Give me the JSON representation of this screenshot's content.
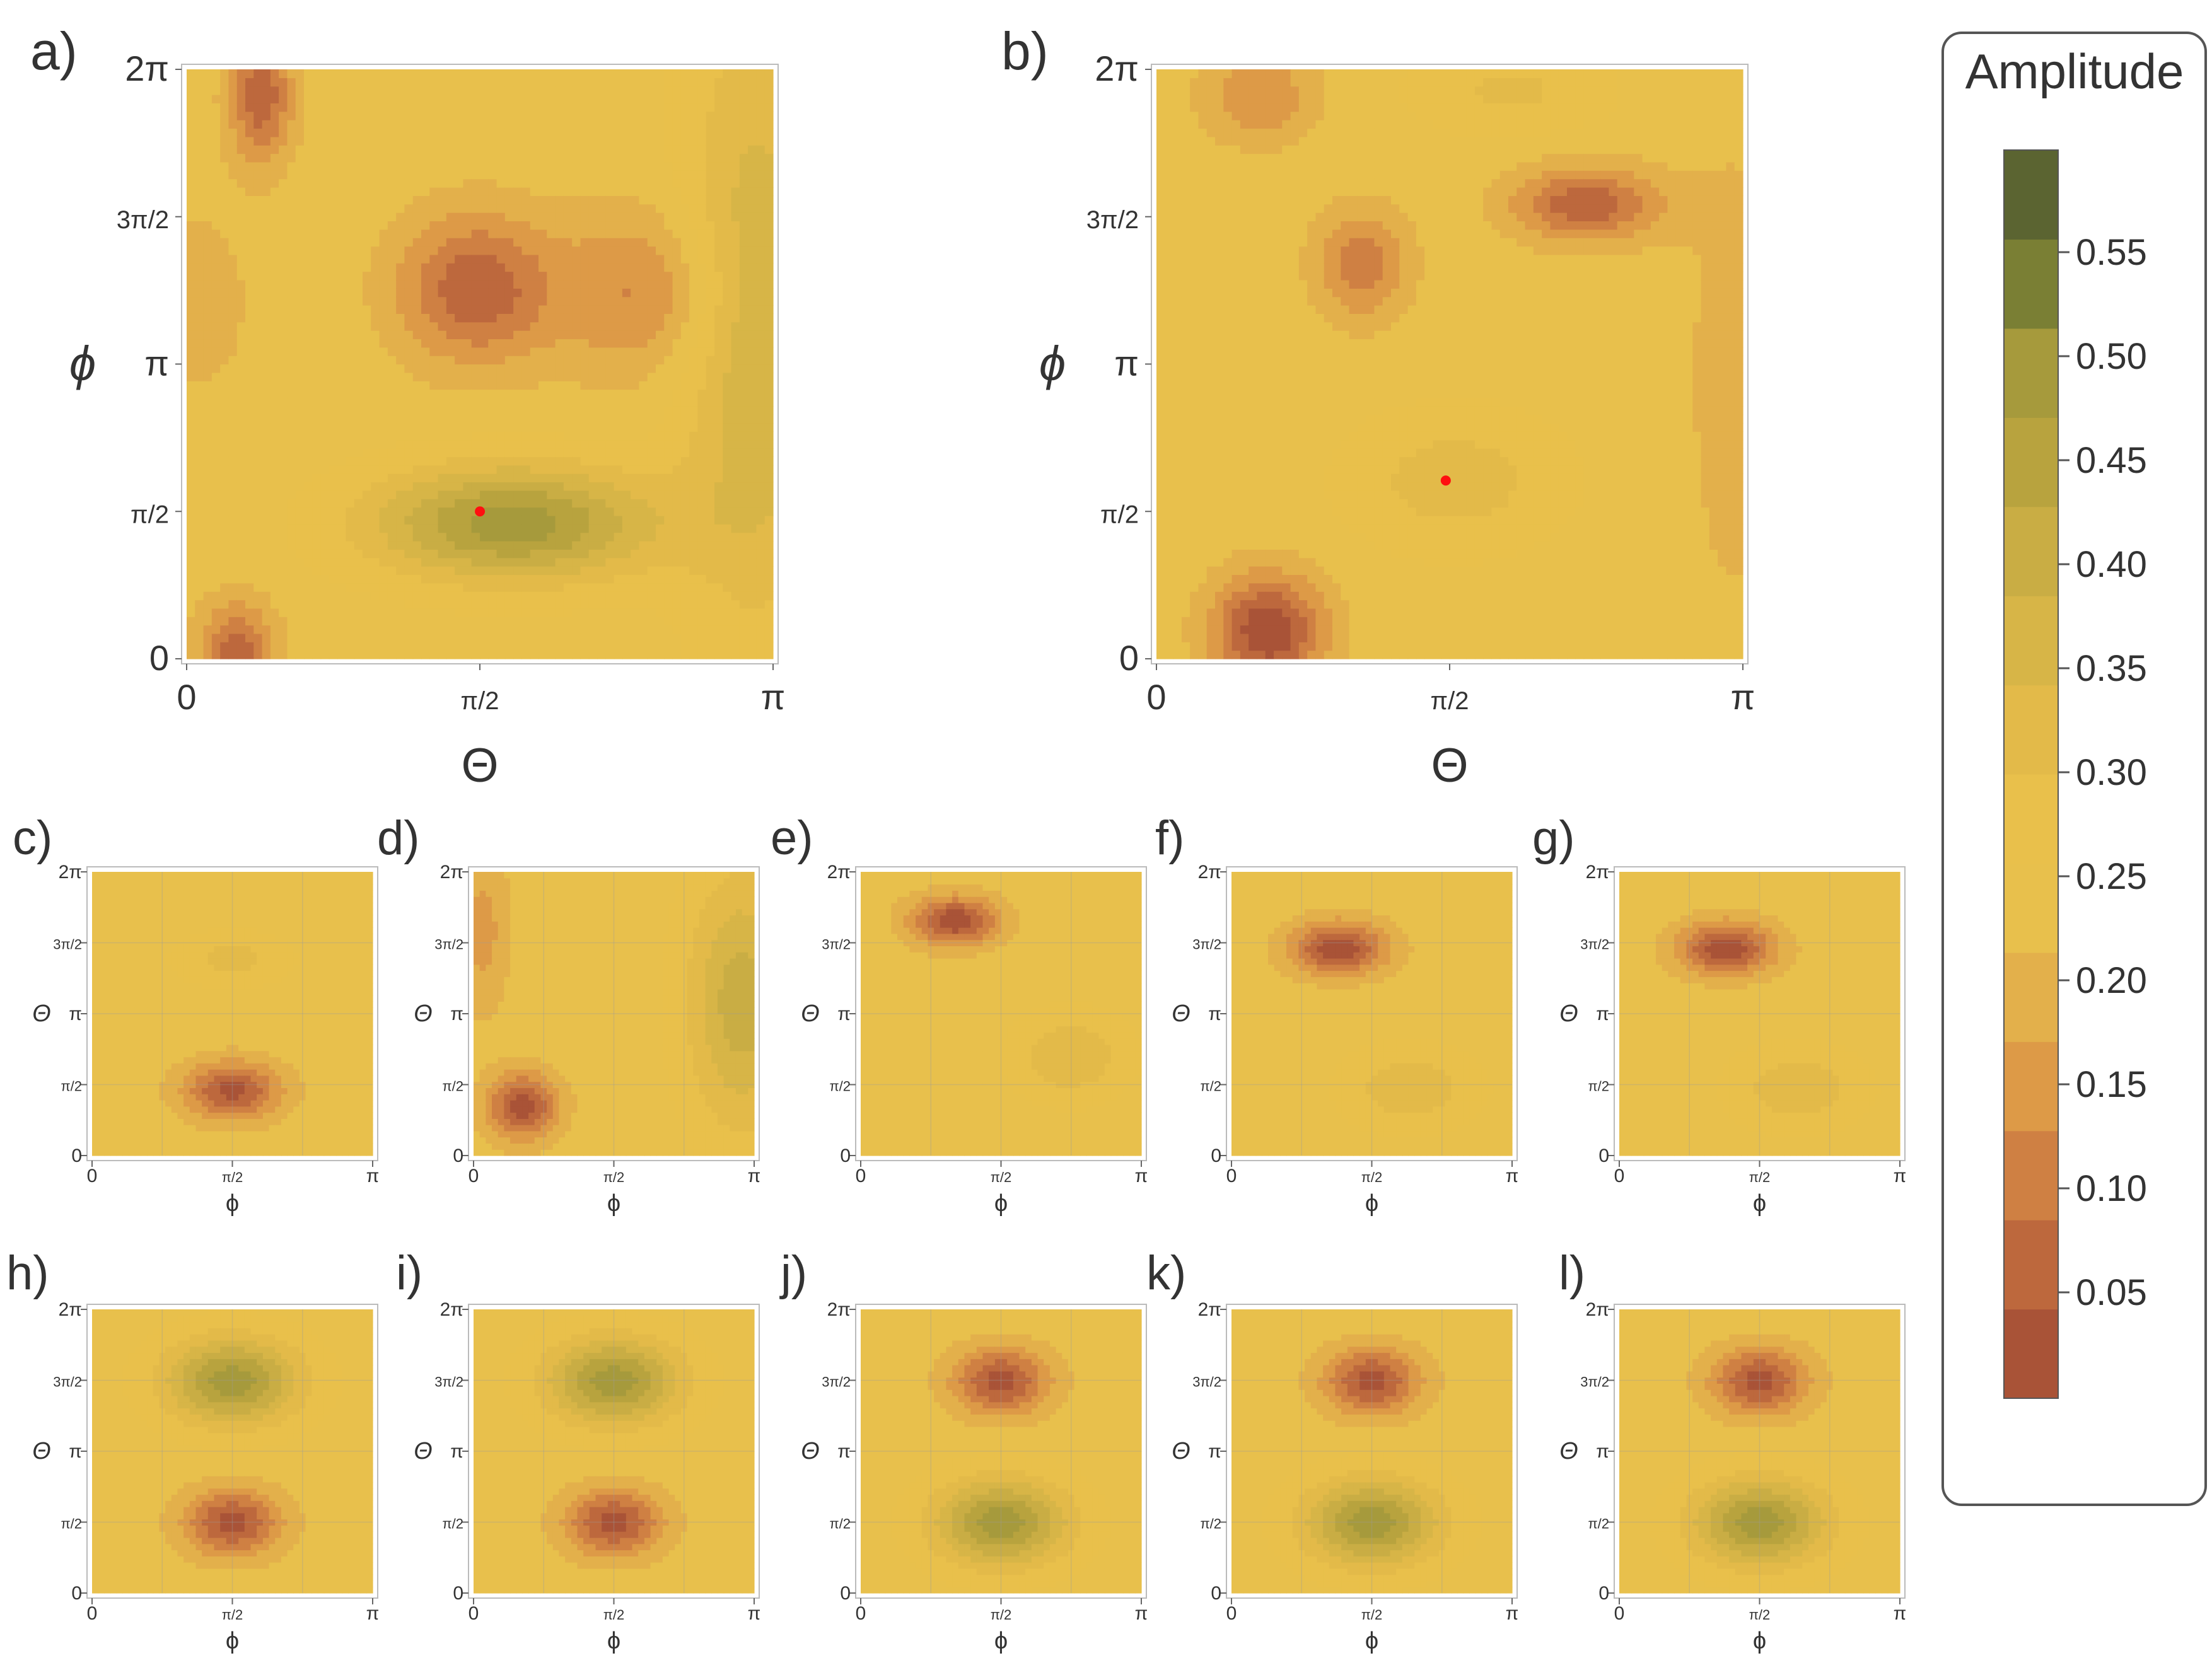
{
  "colorbar": {
    "title": "Amplitude",
    "ticks": [
      "0.55",
      "0.50",
      "0.45",
      "0.40",
      "0.35",
      "0.30",
      "0.25",
      "0.20",
      "0.15",
      "0.10",
      "0.05"
    ],
    "levels": [
      0.05,
      0.1,
      0.15,
      0.2,
      0.25,
      0.3,
      0.35,
      0.4,
      0.45,
      0.5,
      0.55
    ],
    "colors": [
      "#a95337",
      "#bd683d",
      "#cf8043",
      "#dd9a47",
      "#e3b04b",
      "#e8c04c",
      "#e9c04b",
      "#e3ba49",
      "#d7b547",
      "#c9ad44",
      "#b8a33e",
      "#a69a3c",
      "#7a7f34",
      "#5b6431"
    ]
  },
  "chart_data": [
    {
      "id": "a",
      "label": "a)",
      "type": "heatmap",
      "xlabel": "Θ",
      "ylabel": "ϕ",
      "xticks": [
        "0",
        "π/2",
        "π"
      ],
      "yticks": [
        "0",
        "π/2",
        "π",
        "3π/2",
        "2π"
      ],
      "xlim": [
        0,
        3.1416
      ],
      "ylim": [
        0,
        6.2832
      ],
      "marker": {
        "x": 1.571,
        "y": 1.571
      },
      "features": [
        {
          "x": 0.27,
          "y": 0.05,
          "amp": -0.22,
          "sx": 0.2,
          "sy": 0.55
        },
        {
          "x": 0.4,
          "y": 6.0,
          "amp": -0.22,
          "sx": 0.17,
          "sy": 0.7
        },
        {
          "x": 1.55,
          "y": 3.95,
          "amp": -0.22,
          "sx": 0.42,
          "sy": 0.8
        },
        {
          "x": 2.45,
          "y": 3.9,
          "amp": -0.14,
          "sx": 0.45,
          "sy": 0.9
        },
        {
          "x": 1.75,
          "y": 1.45,
          "amp": 0.3,
          "sx": 0.75,
          "sy": 0.6
        },
        {
          "x": 3.05,
          "y": 3.6,
          "amp": 0.17,
          "sx": 0.4,
          "sy": 3.2
        },
        {
          "x": 0.05,
          "y": 3.8,
          "amp": -0.05,
          "sx": 0.35,
          "sy": 1.2
        }
      ]
    },
    {
      "id": "b",
      "label": "b)",
      "type": "heatmap",
      "xlabel": "Θ",
      "ylabel": "ϕ",
      "xticks": [
        "0",
        "π/2",
        "π"
      ],
      "yticks": [
        "0",
        "π/2",
        "π",
        "3π/2",
        "2π"
      ],
      "xlim": [
        0,
        3.1416
      ],
      "ylim": [
        0,
        6.2832
      ],
      "marker": {
        "x": 1.55,
        "y": 1.9
      },
      "features": [
        {
          "x": 0.6,
          "y": 0.3,
          "amp": -0.28,
          "sx": 0.3,
          "sy": 0.6
        },
        {
          "x": 2.3,
          "y": 4.85,
          "amp": -0.22,
          "sx": 0.4,
          "sy": 0.4
        },
        {
          "x": 1.1,
          "y": 4.2,
          "amp": -0.16,
          "sx": 0.25,
          "sy": 0.6
        },
        {
          "x": 0.55,
          "y": 6.0,
          "amp": -0.13,
          "sx": 0.3,
          "sy": 0.5
        },
        {
          "x": 1.9,
          "y": 6.05,
          "amp": 0.08,
          "sx": 0.5,
          "sy": 0.45
        },
        {
          "x": 1.6,
          "y": 1.9,
          "amp": 0.1,
          "sx": 0.55,
          "sy": 0.7
        },
        {
          "x": 3.1,
          "y": 3.0,
          "amp": -0.05,
          "sx": 0.3,
          "sy": 3.0
        }
      ]
    },
    {
      "id": "c",
      "label": "c)",
      "type": "heatmap",
      "xlabel": "ϕ",
      "ylabel": "Θ",
      "xticks": [
        "0",
        "π/2",
        "π"
      ],
      "yticks": [
        "0",
        "π/2",
        "π",
        "3π/2",
        "2π"
      ],
      "xlim": [
        0,
        3.1416
      ],
      "ylim": [
        0,
        6.2832
      ],
      "features": [
        {
          "x": 1.57,
          "y": 1.45,
          "amp": -0.25,
          "sx": 0.55,
          "sy": 0.65
        },
        {
          "x": 1.57,
          "y": 4.35,
          "amp": 0.09,
          "sx": 0.6,
          "sy": 0.55
        }
      ]
    },
    {
      "id": "d",
      "label": "d)",
      "type": "heatmap",
      "xlabel": "ϕ",
      "ylabel": "Θ",
      "xticks": [
        "0",
        "π/2",
        "π"
      ],
      "yticks": [
        "0",
        "π/2",
        "π",
        "3π/2",
        "2π"
      ],
      "xlim": [
        0,
        3.1416
      ],
      "ylim": [
        0,
        6.2832
      ],
      "features": [
        {
          "x": 0.55,
          "y": 1.1,
          "amp": -0.26,
          "sx": 0.4,
          "sy": 0.75
        },
        {
          "x": 0.1,
          "y": 5.0,
          "amp": -0.1,
          "sx": 0.3,
          "sy": 1.8
        },
        {
          "x": 3.0,
          "y": 3.4,
          "amp": 0.2,
          "sx": 0.6,
          "sy": 2.8
        }
      ]
    },
    {
      "id": "e",
      "label": "e)",
      "type": "heatmap",
      "xlabel": "ϕ",
      "ylabel": "Θ",
      "xticks": [
        "0",
        "π/2",
        "π"
      ],
      "yticks": [
        "0",
        "π/2",
        "π",
        "3π/2",
        "2π"
      ],
      "xlim": [
        0,
        3.1416
      ],
      "ylim": [
        0,
        6.2832
      ],
      "features": [
        {
          "x": 1.05,
          "y": 5.2,
          "amp": -0.27,
          "sx": 0.5,
          "sy": 0.55
        },
        {
          "x": 2.35,
          "y": 2.2,
          "amp": 0.12,
          "sx": 0.6,
          "sy": 0.9
        }
      ]
    },
    {
      "id": "f",
      "label": "f)",
      "type": "heatmap",
      "xlabel": "ϕ",
      "ylabel": "Θ",
      "xticks": [
        "0",
        "π/2",
        "π"
      ],
      "yticks": [
        "0",
        "π/2",
        "π",
        "3π/2",
        "2π"
      ],
      "xlim": [
        0,
        3.1416
      ],
      "ylim": [
        0,
        6.2832
      ],
      "features": [
        {
          "x": 1.2,
          "y": 4.6,
          "amp": -0.27,
          "sx": 0.55,
          "sy": 0.6
        },
        {
          "x": 2.0,
          "y": 1.5,
          "amp": 0.11,
          "sx": 0.7,
          "sy": 0.85
        }
      ]
    },
    {
      "id": "g",
      "label": "g)",
      "type": "heatmap",
      "xlabel": "ϕ",
      "ylabel": "Θ",
      "xticks": [
        "0",
        "π/2",
        "π"
      ],
      "yticks": [
        "0",
        "π/2",
        "π",
        "3π/2",
        "2π"
      ],
      "xlim": [
        0,
        3.1416
      ],
      "ylim": [
        0,
        6.2832
      ],
      "features": [
        {
          "x": 1.2,
          "y": 4.6,
          "amp": -0.27,
          "sx": 0.55,
          "sy": 0.6
        },
        {
          "x": 2.0,
          "y": 1.5,
          "amp": 0.11,
          "sx": 0.7,
          "sy": 0.85
        }
      ]
    },
    {
      "id": "h",
      "label": "h)",
      "type": "heatmap",
      "xlabel": "ϕ",
      "ylabel": "Θ",
      "xticks": [
        "0",
        "π/2",
        "π"
      ],
      "yticks": [
        "0",
        "π/2",
        "π",
        "3π/2",
        "2π"
      ],
      "xlim": [
        0,
        3.1416
      ],
      "ylim": [
        0,
        6.2832
      ],
      "features": [
        {
          "x": 1.57,
          "y": 4.7,
          "amp": 0.3,
          "sx": 0.75,
          "sy": 0.95
        },
        {
          "x": 1.57,
          "y": 1.57,
          "amp": -0.25,
          "sx": 0.55,
          "sy": 0.75
        }
      ]
    },
    {
      "id": "i",
      "label": "i)",
      "type": "heatmap",
      "xlabel": "ϕ",
      "ylabel": "Θ",
      "xticks": [
        "0",
        "π/2",
        "π"
      ],
      "yticks": [
        "0",
        "π/2",
        "π",
        "3π/2",
        "2π"
      ],
      "xlim": [
        0,
        3.1416
      ],
      "ylim": [
        0,
        6.2832
      ],
      "features": [
        {
          "x": 1.57,
          "y": 4.7,
          "amp": 0.3,
          "sx": 0.75,
          "sy": 0.95
        },
        {
          "x": 1.57,
          "y": 1.57,
          "amp": -0.25,
          "sx": 0.55,
          "sy": 0.75
        }
      ]
    },
    {
      "id": "j",
      "label": "j)",
      "type": "heatmap",
      "xlabel": "ϕ",
      "ylabel": "Θ",
      "xticks": [
        "0",
        "π/2",
        "π"
      ],
      "yticks": [
        "0",
        "π/2",
        "π",
        "3π/2",
        "2π"
      ],
      "xlim": [
        0,
        3.1416
      ],
      "ylim": [
        0,
        6.2832
      ],
      "features": [
        {
          "x": 1.57,
          "y": 4.7,
          "amp": -0.25,
          "sx": 0.55,
          "sy": 0.75
        },
        {
          "x": 1.57,
          "y": 1.57,
          "amp": 0.3,
          "sx": 0.75,
          "sy": 0.95
        }
      ]
    },
    {
      "id": "k",
      "label": "k)",
      "type": "heatmap",
      "xlabel": "ϕ",
      "ylabel": "Θ",
      "xticks": [
        "0",
        "π/2",
        "π"
      ],
      "yticks": [
        "0",
        "π/2",
        "π",
        "3π/2",
        "2π"
      ],
      "xlim": [
        0,
        3.1416
      ],
      "ylim": [
        0,
        6.2832
      ],
      "features": [
        {
          "x": 1.57,
          "y": 4.7,
          "amp": -0.25,
          "sx": 0.55,
          "sy": 0.75
        },
        {
          "x": 1.57,
          "y": 1.57,
          "amp": 0.3,
          "sx": 0.75,
          "sy": 0.95
        }
      ]
    },
    {
      "id": "l",
      "label": "l)",
      "type": "heatmap",
      "xlabel": "ϕ",
      "ylabel": "Θ",
      "xticks": [
        "0",
        "π/2",
        "π"
      ],
      "yticks": [
        "0",
        "π/2",
        "π",
        "3π/2",
        "2π"
      ],
      "xlim": [
        0,
        3.1416
      ],
      "ylim": [
        0,
        6.2832
      ],
      "features": [
        {
          "x": 1.57,
          "y": 4.7,
          "amp": -0.25,
          "sx": 0.55,
          "sy": 0.75
        },
        {
          "x": 1.57,
          "y": 1.57,
          "amp": 0.3,
          "sx": 0.75,
          "sy": 0.95
        }
      ]
    }
  ]
}
